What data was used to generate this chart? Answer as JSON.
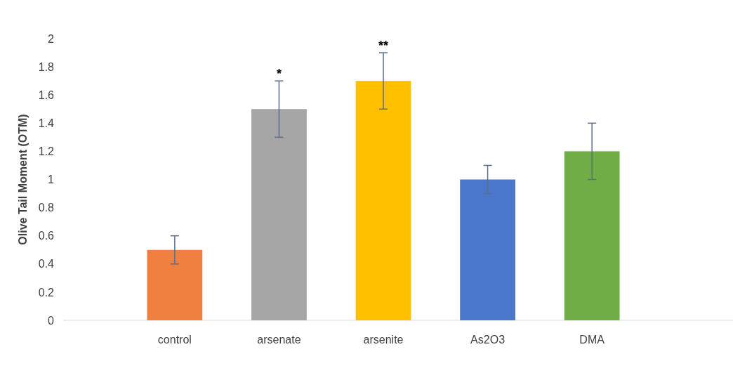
{
  "chart_data": {
    "type": "bar",
    "ylabel": "Olive Tail Moment (OTM)",
    "categories": [
      null,
      "control",
      "arsenate",
      "arsenite",
      "As2O3",
      "DMA",
      null
    ],
    "values": [
      null,
      0.5,
      1.5,
      1.7,
      1.0,
      1.2,
      null
    ],
    "colors": [
      null,
      "#f08040",
      "#a5a5a5",
      "#ffc000",
      "#4a76cc",
      "#70ad47",
      null
    ],
    "value_labels": [
      null,
      null,
      "*",
      "**",
      null,
      null,
      null
    ],
    "errors": [
      null,
      0.1,
      0.2,
      0.2,
      0.1,
      0.2,
      null
    ],
    "ylim": [
      0,
      2
    ],
    "yticks": [
      0,
      0.2,
      0.4,
      0.6,
      0.8,
      1,
      1.2,
      1.4,
      1.6,
      1.8,
      2
    ],
    "grid": false
  }
}
